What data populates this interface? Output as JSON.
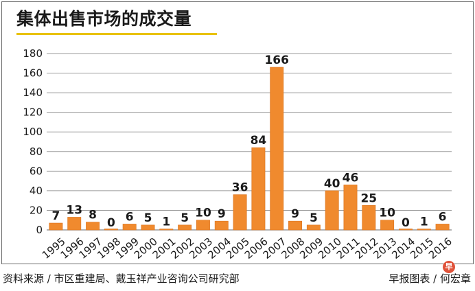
{
  "header": {
    "title": "集体出售市场的成交量"
  },
  "footer": {
    "source": "资料来源 / 市区重建局、戴玉祥产业咨询公司研究部",
    "credit": "早报图表 / 何宏章"
  },
  "logo": {
    "glyph": "早"
  },
  "colors": {
    "bar": "#f08a2e",
    "bar_edge": "#d9731f",
    "grid": "#9a9a9a",
    "title_underline": "#e9c200"
  },
  "chart_data": {
    "type": "bar",
    "title": "集体出售市场的成交量",
    "xlabel": "",
    "ylabel": "",
    "categories": [
      "1995",
      "1996",
      "1997",
      "1998",
      "1999",
      "2000",
      "2001",
      "2002",
      "2003",
      "2004",
      "2005",
      "2006",
      "2007",
      "2008",
      "2009",
      "2010",
      "2011",
      "2012",
      "2013",
      "2014",
      "2015",
      "2016"
    ],
    "values": [
      7,
      13,
      8,
      0,
      6,
      5,
      1,
      5,
      10,
      9,
      36,
      84,
      166,
      9,
      5,
      40,
      46,
      25,
      10,
      0,
      1,
      6
    ],
    "ylim": [
      0,
      180
    ],
    "yticks": [
      0,
      20,
      40,
      60,
      80,
      100,
      120,
      140,
      160,
      180
    ],
    "grid": true,
    "x_tick_rotation": "diagonal"
  }
}
